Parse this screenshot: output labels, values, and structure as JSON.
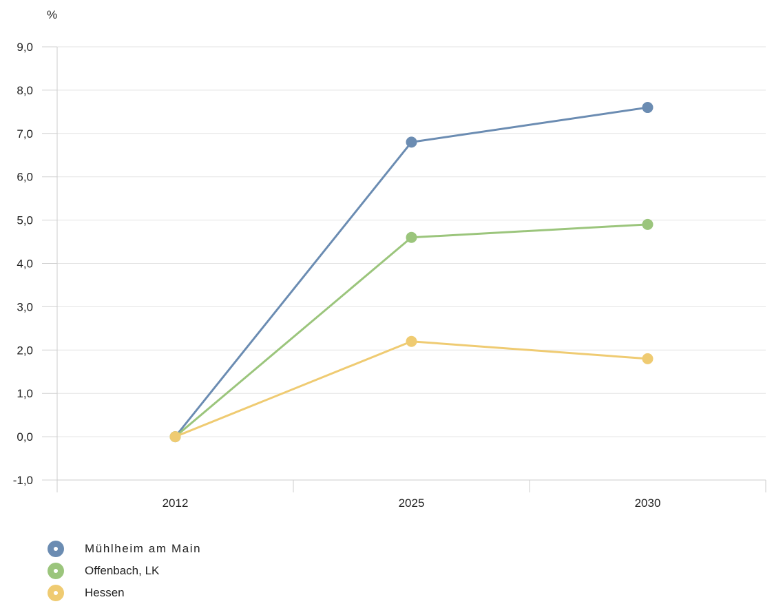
{
  "chart_data": {
    "type": "line",
    "ylabel": "%",
    "xlabel": "",
    "categories": [
      "2012",
      "2025",
      "2030"
    ],
    "ylim": [
      -1,
      9
    ],
    "yticks": [
      -1,
      0,
      1,
      2,
      3,
      4,
      5,
      6,
      7,
      8,
      9
    ],
    "ytick_labels": [
      "-1,0",
      "0,0",
      "1,0",
      "2,0",
      "3,0",
      "4,0",
      "5,0",
      "6,0",
      "7,0",
      "8,0",
      "9,0"
    ],
    "grid": true,
    "legend_position": "bottom-left",
    "series": [
      {
        "name": "Mühlheim am Main",
        "color": "#6b8cb2",
        "values": [
          0,
          6.8,
          7.6
        ]
      },
      {
        "name": "Offenbach, LK",
        "color": "#9bc57c",
        "values": [
          0,
          4.6,
          4.9
        ]
      },
      {
        "name": "Hessen",
        "color": "#efcb72",
        "values": [
          0,
          2.2,
          1.8
        ]
      }
    ]
  }
}
